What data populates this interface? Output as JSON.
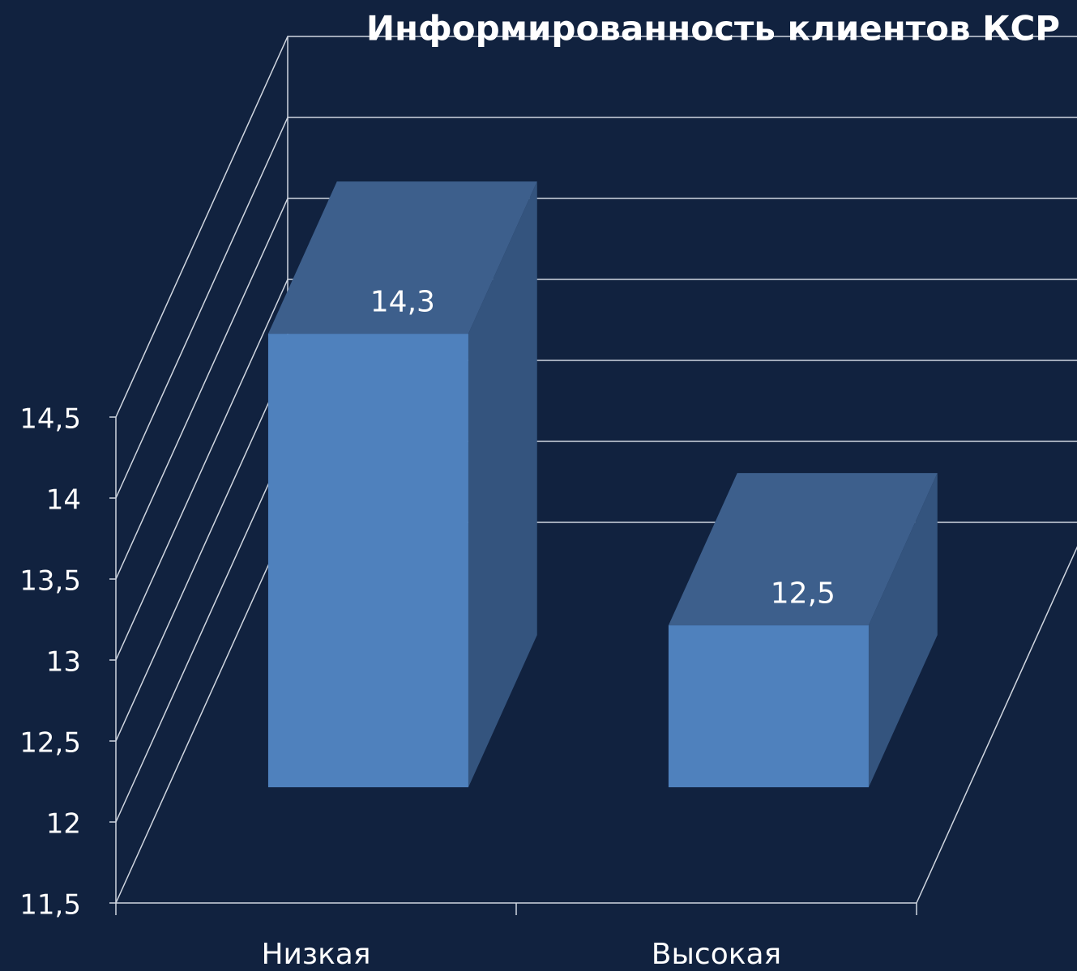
{
  "chart_data": {
    "type": "bar3d",
    "title": "Информированность клиентов КСР",
    "categories": [
      "Низкая",
      "Высокая"
    ],
    "values": [
      14.3,
      12.5
    ],
    "value_labels": [
      "14,3",
      "12,5"
    ],
    "color": "#4f81bd",
    "ylim": [
      11.5,
      14.5
    ],
    "yticks": [
      {
        "value": 11.5,
        "label": "11,5"
      },
      12,
      {
        "value": 12.5,
        "label": "12,5"
      },
      13,
      {
        "value": 13.5,
        "label": "13,5"
      },
      14,
      {
        "value": 14.5,
        "label": "14,5"
      }
    ],
    "grid": true
  }
}
